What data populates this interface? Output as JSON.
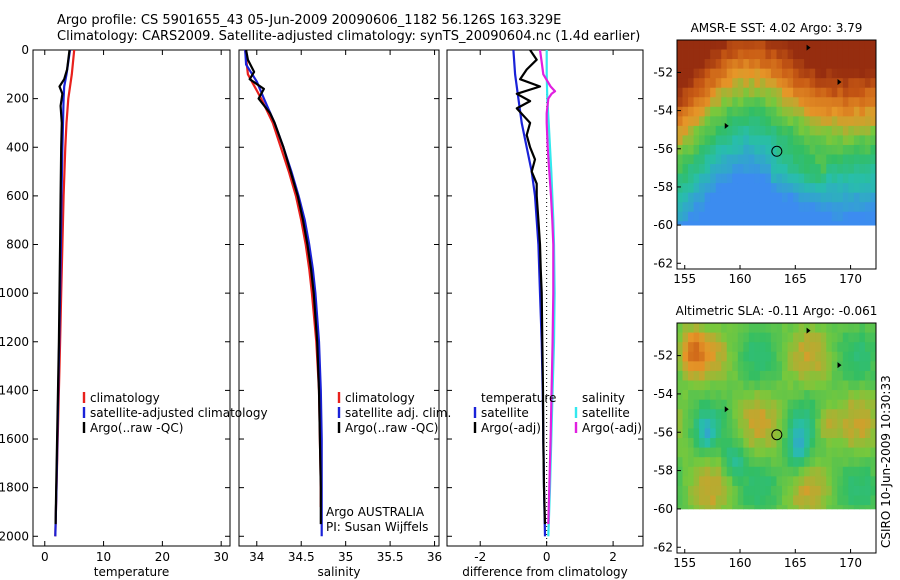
{
  "header": {
    "line1": "Argo profile: CS 5901655_43 05-Jun-2009 20090606_1182 56.126S 163.329E",
    "line2": "Climatology: CARS2009. Satellite-adjusted climatology: synTS_20090604.nc (1.4d earlier)"
  },
  "credit": "CSIRO 10-Jun-2009 10:30:33",
  "depth_ticks": [
    "0",
    "200",
    "400",
    "600",
    "800",
    "1000",
    "1200",
    "1400",
    "1600",
    "1800",
    "2000"
  ],
  "colors": {
    "red": "#e8201c",
    "blue": "#1a22d8",
    "black": "#000000",
    "cyan": "#33e8ee",
    "magenta": "#e020e0"
  },
  "chart_data": [
    {
      "type": "line",
      "title": "",
      "xlabel": "temperature",
      "ylabel": "",
      "xlim": [
        -2,
        31.5
      ],
      "ylim": [
        0,
        2040
      ],
      "x_ticks": [
        "0",
        "10",
        "20",
        "30"
      ],
      "legend": {
        "placement": "lower-center",
        "entries": [
          "climatology",
          "satellite-adjusted climatology",
          "Argo(..raw -QC)"
        ]
      },
      "series": [
        {
          "name": "climatology",
          "color": "red",
          "depth": [
            0,
            100,
            200,
            300,
            400,
            600,
            800,
            1000,
            1200,
            1400,
            1600,
            1800,
            2000
          ],
          "values": [
            5.0,
            4.6,
            4.0,
            3.7,
            3.5,
            3.2,
            3.0,
            2.8,
            2.6,
            2.4,
            2.2,
            2.0,
            1.8
          ]
        },
        {
          "name": "satellite-adjusted climatology",
          "color": "blue",
          "depth": [
            0,
            100,
            150,
            200,
            300,
            400,
            600,
            800,
            1000,
            1200,
            1400,
            1600,
            1800,
            2000
          ],
          "values": [
            4.3,
            3.7,
            3.3,
            3.2,
            3.1,
            3.0,
            2.85,
            2.75,
            2.6,
            2.45,
            2.3,
            2.15,
            2.0,
            1.8
          ]
        },
        {
          "name": "Argo(..raw -QC)",
          "color": "black",
          "depth": [
            0,
            40,
            80,
            120,
            150,
            180,
            230,
            300,
            400,
            600,
            800,
            1000,
            1200,
            1400,
            1600,
            1800,
            1950
          ],
          "values": [
            4.2,
            4.0,
            3.8,
            3.3,
            2.5,
            3.0,
            2.7,
            2.9,
            2.8,
            2.7,
            2.6,
            2.5,
            2.4,
            2.25,
            2.1,
            1.95,
            1.85
          ]
        }
      ]
    },
    {
      "type": "line",
      "title": "",
      "xlabel": "salinity",
      "ylabel": "",
      "xlim": [
        33.8,
        36.05
      ],
      "ylim": [
        0,
        2040
      ],
      "x_ticks": [
        "34",
        "34.5",
        "35",
        "35.5",
        "36"
      ],
      "legend": {
        "placement": "lower-center",
        "entries": [
          "climatology",
          "satellite adj. clim.",
          "Argo(..raw -QC)"
        ]
      },
      "annotations": [
        "Argo AUSTRALIA",
        "PI: Susan Wijffels"
      ],
      "series": [
        {
          "name": "climatology",
          "color": "red",
          "depth": [
            0,
            100,
            200,
            300,
            400,
            500,
            600,
            700,
            800,
            900,
            1000,
            1200,
            1400,
            1600,
            1800,
            1880
          ],
          "values": [
            33.87,
            33.9,
            34.05,
            34.18,
            34.27,
            34.36,
            34.44,
            34.5,
            34.55,
            34.59,
            34.62,
            34.67,
            34.7,
            34.71,
            34.72,
            34.72
          ]
        },
        {
          "name": "satellite adj. clim.",
          "color": "blue",
          "depth": [
            0,
            60,
            130,
            200,
            300,
            400,
            500,
            600,
            700,
            800,
            900,
            1000,
            1200,
            1400,
            1600,
            1800,
            2000
          ],
          "values": [
            33.87,
            33.88,
            34.0,
            34.08,
            34.2,
            34.3,
            34.39,
            34.47,
            34.54,
            34.59,
            34.63,
            34.66,
            34.7,
            34.72,
            34.73,
            34.73,
            34.73
          ]
        },
        {
          "name": "Argo(..raw -QC)",
          "color": "black",
          "depth": [
            0,
            40,
            90,
            120,
            160,
            200,
            260,
            300,
            400,
            500,
            600,
            700,
            800,
            900,
            1000,
            1200,
            1400,
            1600,
            1800,
            1950
          ],
          "values": [
            33.88,
            33.9,
            33.97,
            33.92,
            34.08,
            34.02,
            34.15,
            34.2,
            34.3,
            34.38,
            34.46,
            34.52,
            34.57,
            34.61,
            34.64,
            34.68,
            34.7,
            34.71,
            34.72,
            34.72
          ]
        }
      ]
    },
    {
      "type": "line",
      "title": "",
      "xlabel": "difference from climatology",
      "ylabel": "",
      "xlim": [
        -3.0,
        2.9
      ],
      "ylim": [
        0,
        2040
      ],
      "x_ticks": [
        "-2",
        "0",
        "2"
      ],
      "legend": {
        "placement": "lower-center",
        "entries": [
          "temperature",
          "satellite",
          "Argo(-adj)",
          "salinity",
          "satellite",
          "Argo(-adj)"
        ]
      },
      "series": [
        {
          "name": "temperature satellite",
          "color": "blue",
          "depth": [
            0,
            100,
            200,
            300,
            400,
            500,
            600,
            700,
            800,
            1000,
            1200,
            1400,
            1600,
            1800,
            2000
          ],
          "values": [
            -1.0,
            -0.95,
            -0.85,
            -0.75,
            -0.6,
            -0.45,
            -0.35,
            -0.3,
            -0.25,
            -0.2,
            -0.15,
            -0.12,
            -0.1,
            -0.08,
            -0.05
          ]
        },
        {
          "name": "temperature Argo(-adj)",
          "color": "black",
          "depth": [
            0,
            40,
            80,
            120,
            150,
            180,
            210,
            240,
            270,
            300,
            350,
            400,
            450,
            500,
            550,
            600,
            700,
            800,
            900,
            1000,
            1200,
            1400,
            1600,
            1800,
            1950
          ],
          "values": [
            -0.5,
            -0.3,
            -0.6,
            -0.8,
            -0.2,
            -0.9,
            -0.5,
            -0.9,
            -0.7,
            -0.5,
            -0.6,
            -0.5,
            -0.35,
            -0.45,
            -0.3,
            -0.3,
            -0.25,
            -0.2,
            -0.18,
            -0.15,
            -0.13,
            -0.11,
            -0.1,
            -0.08,
            -0.05
          ]
        },
        {
          "name": "salinity satellite",
          "color": "cyan",
          "depth": [
            0,
            100,
            200,
            300,
            400,
            500,
            600,
            700,
            800,
            900,
            1000,
            1200,
            1400,
            1600,
            1800,
            2000
          ],
          "values": [
            0.0,
            0.0,
            0.02,
            0.06,
            0.1,
            0.14,
            0.17,
            0.2,
            0.22,
            0.23,
            0.24,
            0.22,
            0.18,
            0.14,
            0.1,
            0.05
          ]
        },
        {
          "name": "salinity Argo(-adj)",
          "color": "magenta",
          "depth": [
            0,
            50,
            100,
            150,
            170,
            180,
            200,
            260,
            300,
            400,
            500,
            600,
            700,
            800,
            900,
            1000,
            1200,
            1400,
            1600,
            1800,
            1950
          ],
          "values": [
            -0.2,
            -0.15,
            -0.1,
            0.12,
            0.25,
            0.15,
            0.05,
            0.0,
            0.0,
            0.03,
            0.08,
            0.13,
            0.17,
            0.2,
            0.2,
            0.2,
            0.18,
            0.15,
            0.12,
            0.08,
            0.05
          ]
        }
      ]
    },
    {
      "type": "heatmap",
      "title": "AMSR-E SST: 4.02 Argo: 3.79",
      "xlim": [
        154.3,
        172.3
      ],
      "ylim": [
        -62.3,
        -50.3
      ],
      "x_ticks": [
        155,
        160,
        165,
        170
      ],
      "y_ticks": [
        -52,
        -54,
        -56,
        -58,
        -60,
        -62
      ],
      "argo_position": [
        163.33,
        -56.13
      ],
      "other_floats": [
        [
          166.2,
          -50.7
        ],
        [
          169.0,
          -52.5
        ],
        [
          158.8,
          -54.8
        ]
      ]
    },
    {
      "type": "heatmap",
      "title": "Altimetric SLA: -0.11 Argo: -0.061",
      "xlim": [
        154.3,
        172.3
      ],
      "ylim": [
        -62.3,
        -50.3
      ],
      "x_ticks": [
        155,
        160,
        165,
        170
      ],
      "y_ticks": [
        -52,
        -54,
        -56,
        -58,
        -60,
        -62
      ],
      "argo_position": [
        163.33,
        -56.13
      ],
      "other_floats": [
        [
          166.2,
          -50.7
        ],
        [
          169.0,
          -52.5
        ],
        [
          158.8,
          -54.8
        ]
      ]
    }
  ]
}
